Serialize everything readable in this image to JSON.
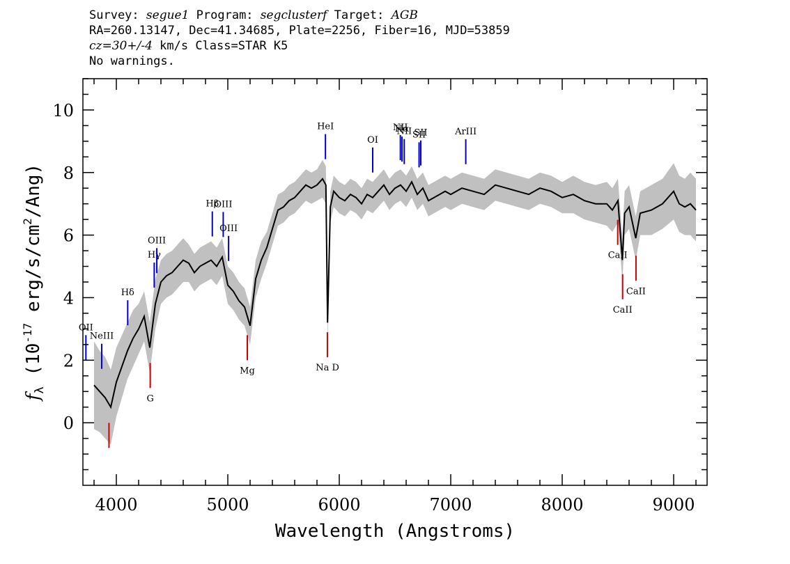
{
  "header": {
    "survey_label": "Survey:",
    "survey": "segue1",
    "program_label": "Program:",
    "program": "segclusterf",
    "target_label": "Target:",
    "target": "AGB",
    "line2": "RA=260.13147, Dec=41.34685, Plate=2256, Fiber=16, MJD=53859",
    "cz": "cz=30+/-4",
    "cz_units": "km/s Class=STAR K5",
    "line4": "No warnings."
  },
  "colors": {
    "flux": "#000000",
    "error_band": "#c0c0c0",
    "emission_line": "#0000cc",
    "absorption_line": "#cc0000"
  },
  "chart_data": {
    "type": "line",
    "xlabel": "Wavelength (Angstroms)",
    "ylabel": "f_λ (10^-17 erg/s/cm^2/Ang)",
    "xlim": [
      3700,
      9300
    ],
    "ylim": [
      -2,
      11
    ],
    "xticks": [
      4000,
      5000,
      6000,
      7000,
      8000,
      9000
    ],
    "yticks": [
      0,
      2,
      4,
      6,
      8,
      10
    ],
    "grid": false,
    "series": [
      {
        "wavelength": [
          3800,
          3850,
          3900,
          3950,
          4000,
          4050,
          4100,
          4150,
          4200,
          4250,
          4300,
          4350,
          4400,
          4450,
          4500,
          4550,
          4600,
          4650,
          4700,
          4750,
          4800,
          4850,
          4900,
          4950,
          5000,
          5050,
          5100,
          5150,
          5200,
          5250,
          5300,
          5350,
          5400,
          5450,
          5500,
          5550,
          5600,
          5650,
          5700,
          5750,
          5800,
          5850,
          5880,
          5895,
          5920,
          5950,
          6000,
          6050,
          6100,
          6150,
          6200,
          6250,
          6300,
          6350,
          6400,
          6450,
          6500,
          6550,
          6600,
          6650,
          6700,
          6750,
          6800,
          6850,
          6900,
          6950,
          7000,
          7100,
          7200,
          7300,
          7400,
          7500,
          7600,
          7700,
          7800,
          7900,
          8000,
          8100,
          8200,
          8300,
          8400,
          8450,
          8500,
          8540,
          8560,
          8600,
          8660,
          8700,
          8800,
          8900,
          9000,
          9050,
          9100,
          9150,
          9200
        ],
        "flux": [
          1.2,
          1.0,
          0.8,
          0.5,
          1.3,
          1.8,
          2.3,
          2.7,
          3.0,
          3.4,
          2.4,
          3.8,
          4.5,
          4.7,
          4.8,
          5.0,
          5.2,
          5.1,
          4.8,
          5.0,
          5.1,
          5.2,
          5.0,
          5.3,
          4.4,
          4.2,
          3.9,
          3.7,
          3.1,
          4.6,
          5.2,
          5.6,
          6.2,
          6.8,
          6.9,
          7.1,
          7.2,
          7.4,
          7.6,
          7.5,
          7.6,
          7.8,
          7.6,
          3.2,
          6.9,
          7.4,
          7.2,
          7.1,
          7.3,
          7.2,
          7.0,
          7.3,
          7.2,
          7.4,
          7.6,
          7.3,
          7.5,
          7.6,
          7.4,
          7.7,
          7.3,
          7.5,
          7.1,
          7.2,
          7.3,
          7.4,
          7.3,
          7.5,
          7.4,
          7.3,
          7.6,
          7.5,
          7.4,
          7.3,
          7.5,
          7.4,
          7.2,
          7.3,
          7.1,
          7.0,
          7.0,
          6.8,
          7.1,
          5.2,
          6.7,
          6.9,
          5.9,
          6.7,
          6.8,
          7.0,
          7.4,
          7.0,
          6.9,
          7.0,
          6.8
        ],
        "error": [
          1.4,
          1.3,
          1.3,
          1.2,
          1.1,
          1.0,
          0.9,
          0.9,
          0.8,
          0.8,
          0.8,
          0.8,
          0.7,
          0.7,
          0.7,
          0.7,
          0.7,
          0.6,
          0.6,
          0.6,
          0.6,
          0.6,
          0.6,
          0.6,
          0.6,
          0.6,
          0.6,
          0.6,
          0.6,
          0.6,
          0.6,
          0.5,
          0.5,
          0.5,
          0.5,
          0.5,
          0.5,
          0.5,
          0.5,
          0.5,
          0.5,
          0.6,
          0.6,
          0.6,
          0.5,
          0.5,
          0.5,
          0.5,
          0.5,
          0.5,
          0.5,
          0.5,
          0.5,
          0.5,
          0.5,
          0.5,
          0.5,
          0.5,
          0.5,
          0.5,
          0.5,
          0.5,
          0.5,
          0.5,
          0.5,
          0.5,
          0.5,
          0.5,
          0.5,
          0.5,
          0.5,
          0.5,
          0.5,
          0.5,
          0.5,
          0.5,
          0.5,
          0.6,
          0.6,
          0.6,
          0.7,
          0.7,
          0.7,
          0.7,
          0.7,
          0.7,
          0.7,
          0.7,
          0.8,
          0.8,
          0.9,
          0.9,
          0.9,
          1.0,
          1.0
        ]
      }
    ],
    "emission_lines": [
      {
        "label": "OII",
        "wavelength": 3727
      },
      {
        "label": "NeIII",
        "wavelength": 3869
      },
      {
        "label": "Hδ",
        "wavelength": 4102
      },
      {
        "label": "Hγ",
        "wavelength": 4340
      },
      {
        "label": "OIII",
        "wavelength": 4363
      },
      {
        "label": "Hβ",
        "wavelength": 4861
      },
      {
        "label": "OIII",
        "wavelength": 4959
      },
      {
        "label": "OIII",
        "wavelength": 5007
      },
      {
        "label": "HeI",
        "wavelength": 5876
      },
      {
        "label": "OI",
        "wavelength": 6300
      },
      {
        "label": "NII",
        "wavelength": 6548
      },
      {
        "label": "Hα",
        "wavelength": 6563
      },
      {
        "label": "NII",
        "wavelength": 6583
      },
      {
        "label": "SII",
        "wavelength": 6716
      },
      {
        "label": "SII",
        "wavelength": 6731
      },
      {
        "label": "ArIII",
        "wavelength": 7135
      }
    ],
    "absorption_lines": [
      {
        "label": "",
        "wavelength": 3934
      },
      {
        "label": "G",
        "wavelength": 4304
      },
      {
        "label": "Mg",
        "wavelength": 5175
      },
      {
        "label": "Na D",
        "wavelength": 5894
      },
      {
        "label": "CaII",
        "wavelength": 8498
      },
      {
        "label": "CaII",
        "wavelength": 8542
      },
      {
        "label": "CaII",
        "wavelength": 8662
      }
    ]
  }
}
